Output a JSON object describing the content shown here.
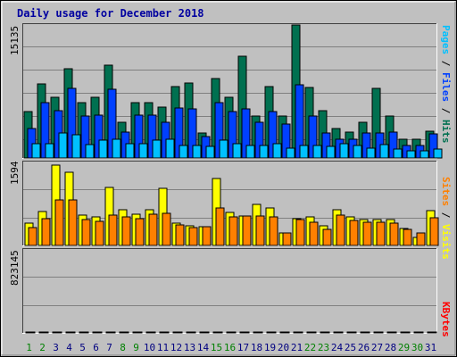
{
  "title": "Daily usage for December 2018",
  "colors": {
    "background": "#c0c0c0",
    "title": "#0000a0",
    "pages": "#00c0ff",
    "files": "#0040ff",
    "hits": "#007050",
    "sites": "#ff8000",
    "visits": "#ffff00",
    "kbytes": "#ff0000",
    "day_weekday": "#000080",
    "day_weekend": "#008000"
  },
  "chart_data": [
    {
      "type": "bar",
      "name": "hits-files-pages",
      "ymax_label": "15135",
      "ylim": [
        0,
        15135
      ],
      "grid": true,
      "legend": {
        "parts": [
          "Pages",
          "Files",
          "Hits"
        ],
        "separator": " / "
      },
      "categories": [
        "1",
        "2",
        "3",
        "4",
        "5",
        "6",
        "7",
        "8",
        "9",
        "10",
        "11",
        "12",
        "13",
        "14",
        "15",
        "16",
        "17",
        "18",
        "19",
        "20",
        "21",
        "22",
        "23",
        "24",
        "25",
        "26",
        "27",
        "28",
        "29",
        "30",
        "31"
      ],
      "series": [
        {
          "name": "Hits",
          "color_key": "hits",
          "values": [
            5300,
            8400,
            6900,
            10200,
            6300,
            6900,
            10600,
            4100,
            6300,
            6300,
            5800,
            8100,
            8500,
            2800,
            9000,
            6900,
            11600,
            4800,
            8100,
            4800,
            15135,
            8000,
            5400,
            3400,
            2900,
            4100,
            7900,
            4800,
            2100,
            2100,
            3000
          ]
        },
        {
          "name": "Files",
          "color_key": "files",
          "values": [
            3400,
            6300,
            5400,
            7900,
            4800,
            4900,
            7800,
            2900,
            4900,
            4900,
            4100,
            5700,
            5600,
            2400,
            6300,
            5300,
            5600,
            4100,
            5300,
            3900,
            8300,
            4800,
            2800,
            2100,
            2100,
            2800,
            2800,
            2900,
            1400,
            1400,
            2700
          ]
        },
        {
          "name": "Pages",
          "color_key": "pages",
          "values": [
            1600,
            1600,
            2800,
            2600,
            1500,
            2000,
            2100,
            1600,
            1600,
            2000,
            2100,
            1400,
            1400,
            1300,
            2000,
            1600,
            1400,
            1400,
            1600,
            1100,
            1400,
            1400,
            1300,
            1600,
            1400,
            1100,
            1500,
            1000,
            800,
            800,
            1000
          ]
        }
      ]
    },
    {
      "type": "bar",
      "name": "visits-sites",
      "ymax_label": "1594",
      "ylim": [
        0,
        1594
      ],
      "grid": true,
      "legend": {
        "parts": [
          "Sites",
          "Visits"
        ],
        "separator": " / "
      },
      "categories": [
        "1",
        "2",
        "3",
        "4",
        "5",
        "6",
        "7",
        "8",
        "9",
        "10",
        "11",
        "12",
        "13",
        "14",
        "15",
        "16",
        "17",
        "18",
        "19",
        "20",
        "21",
        "22",
        "23",
        "24",
        "25",
        "26",
        "27",
        "28",
        "29",
        "30",
        "31"
      ],
      "series": [
        {
          "name": "Visits",
          "color_key": "visits",
          "values": [
            420,
            650,
            1540,
            1410,
            580,
            540,
            1110,
            680,
            600,
            680,
            1100,
            430,
            380,
            360,
            1280,
            640,
            570,
            780,
            720,
            240,
            520,
            550,
            370,
            680,
            550,
            490,
            500,
            490,
            330,
            160,
            670
          ]
        },
        {
          "name": "Sites",
          "color_key": "sites",
          "values": [
            340,
            520,
            880,
            880,
            500,
            470,
            590,
            550,
            510,
            600,
            610,
            390,
            340,
            360,
            720,
            550,
            560,
            570,
            550,
            240,
            500,
            450,
            300,
            580,
            480,
            450,
            450,
            430,
            310,
            240,
            530
          ]
        }
      ]
    },
    {
      "type": "bar",
      "name": "kbytes",
      "ymax_label": "823145",
      "ylim": [
        0,
        823145
      ],
      "grid": true,
      "legend": {
        "parts": [
          "KBytes"
        ],
        "separator": ""
      },
      "categories": [
        "1",
        "2",
        "3",
        "4",
        "5",
        "6",
        "7",
        "8",
        "9",
        "10",
        "11",
        "12",
        "13",
        "14",
        "15",
        "16",
        "17",
        "18",
        "19",
        "20",
        "21",
        "22",
        "23",
        "24",
        "25",
        "26",
        "27",
        "28",
        "29",
        "30",
        "31"
      ],
      "series": [
        {
          "name": "KBytes",
          "color_key": "kbytes",
          "values": [
            560,
            780,
            630,
            820,
            500,
            460,
            660,
            540,
            560,
            620,
            720,
            480,
            590,
            340,
            790,
            470,
            760,
            760,
            540,
            300,
            760,
            600,
            200,
            370,
            480,
            400,
            540,
            550,
            460,
            220,
            520
          ]
        }
      ]
    }
  ],
  "day_labels": [
    "1",
    "2",
    "3",
    "4",
    "5",
    "6",
    "7",
    "8",
    "9",
    "10",
    "11",
    "12",
    "13",
    "14",
    "15",
    "16",
    "17",
    "18",
    "19",
    "20",
    "21",
    "22",
    "23",
    "24",
    "25",
    "26",
    "27",
    "28",
    "29",
    "30",
    "31"
  ],
  "weekend_days": [
    1,
    2,
    8,
    9,
    15,
    16,
    22,
    23,
    29,
    30
  ]
}
